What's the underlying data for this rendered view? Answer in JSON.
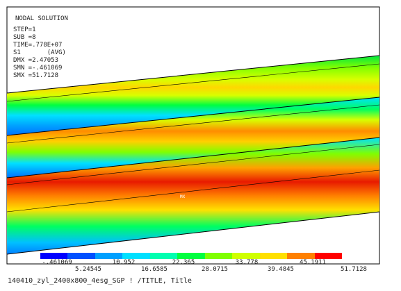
{
  "header": {
    "title": "NODAL SOLUTION",
    "lines": [
      "STEP=1",
      "SUB =8",
      "TIME=.778E+07",
      "S1       (AVG)",
      "DMX =2.47053",
      "SMN =-.461069",
      "SMX =51.7128"
    ]
  },
  "plot": {
    "mx_label": "MX",
    "bands": [
      {
        "peak_color": "#ffd700"
      },
      {
        "peak_color": "#ff8c00"
      },
      {
        "peak_color": "#e81a00"
      }
    ]
  },
  "legend": {
    "top_labels": [
      "-.461069",
      "10.952",
      "22.365",
      "33.778",
      "45.1911"
    ],
    "bottom_labels": [
      "5.24545",
      "16.6585",
      "28.0715",
      "39.4845",
      "51.7128"
    ],
    "colors": [
      "#0000ff",
      "#0050ff",
      "#00a0ff",
      "#00e0ff",
      "#00ffb0",
      "#00ff40",
      "#80ff00",
      "#d0ff00",
      "#ffe000",
      "#ff8000",
      "#ff0000"
    ]
  },
  "footer": {
    "title": "140410_zyl_2400x800_4esg_SGP ! /TITLE, Title"
  }
}
